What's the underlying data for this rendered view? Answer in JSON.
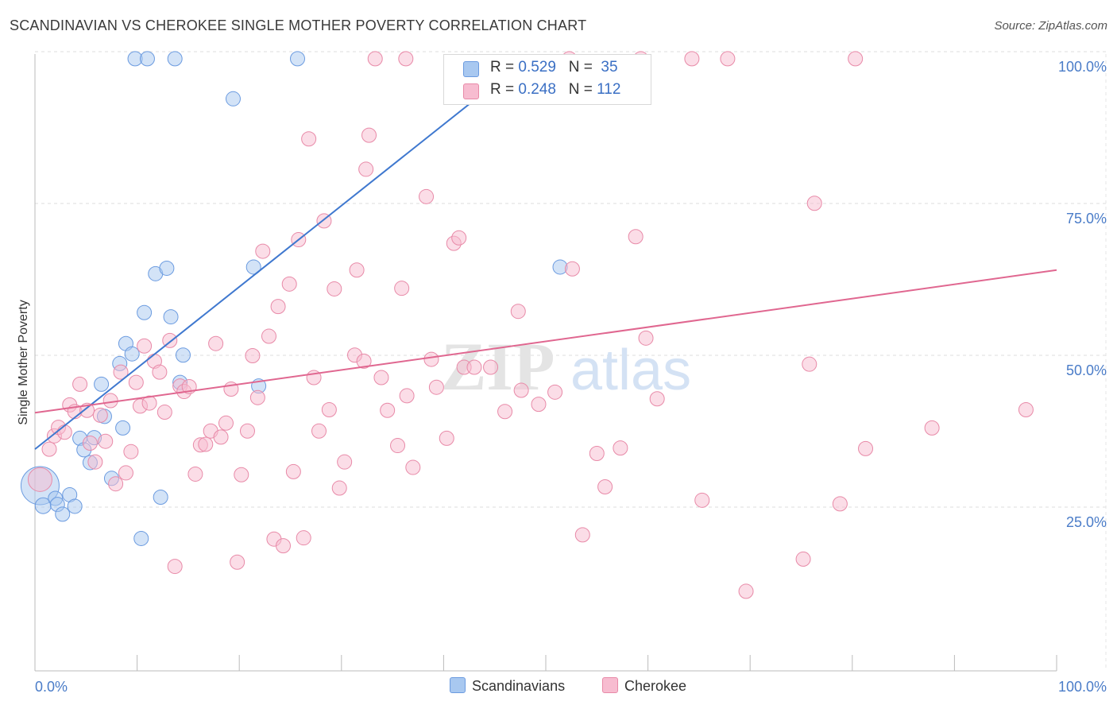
{
  "title": "SCANDINAVIAN VS CHEROKEE SINGLE MOTHER POVERTY CORRELATION CHART",
  "source": "Source: ZipAtlas.com",
  "watermark": {
    "zip": "ZIP",
    "atlas": "atlas"
  },
  "stats": [
    {
      "r_label": "R = ",
      "r_value": "0.529",
      "n_label": "N = ",
      "n_value": "35",
      "color": "#a8c8f0",
      "border": "#6b9be0"
    },
    {
      "r_label": "R = ",
      "r_value": "0.248",
      "n_label": "N = ",
      "n_value": "112",
      "color": "#f7bcd0",
      "border": "#e88aa8"
    }
  ],
  "legend": [
    {
      "label": "Scandinavians",
      "color": "#a8c8f0",
      "border": "#6b9be0"
    },
    {
      "label": "Cherokee",
      "color": "#f7bcd0",
      "border": "#e88aa8"
    }
  ],
  "chart_data": {
    "type": "scatter",
    "title": "SCANDINAVIAN VS CHEROKEE SINGLE MOTHER POVERTY CORRELATION CHART",
    "xlabel": "",
    "ylabel": "Single Mother Poverty",
    "xlim": [
      0,
      100
    ],
    "ylim": [
      0,
      102
    ],
    "x_tick_labels": [
      {
        "value": 0,
        "label": "0.0%"
      },
      {
        "value": 100,
        "label": "100.0%"
      }
    ],
    "y_tick_labels": [
      {
        "value": 25,
        "label": "25.0%"
      },
      {
        "value": 50,
        "label": "50.0%"
      },
      {
        "value": 75,
        "label": "75.0%"
      },
      {
        "value": 100,
        "label": "100.0%"
      }
    ],
    "grid": true,
    "series": [
      {
        "name": "Scandinavians",
        "color": "#a8c8f0",
        "stroke": "#6b9be0",
        "trend": {
          "x0": 0,
          "y0": 36.5,
          "x1": 47.5,
          "y1": 100,
          "color": "#3f78cf"
        },
        "points": [
          [
            0.5,
            30.5,
            24
          ],
          [
            0.8,
            27.2,
            10
          ],
          [
            2.0,
            28.4,
            9
          ],
          [
            2.2,
            27.4,
            9
          ],
          [
            2.7,
            25.8,
            9
          ],
          [
            3.4,
            29.0,
            9
          ],
          [
            3.9,
            27.1,
            9
          ],
          [
            4.4,
            38.3,
            9
          ],
          [
            4.8,
            36.4,
            9
          ],
          [
            5.4,
            34.3,
            9
          ],
          [
            5.8,
            38.4,
            9
          ],
          [
            6.5,
            47.2,
            9
          ],
          [
            6.8,
            41.9,
            9
          ],
          [
            7.5,
            31.7,
            9
          ],
          [
            8.3,
            50.6,
            9
          ],
          [
            8.6,
            40.0,
            9
          ],
          [
            8.9,
            53.9,
            9
          ],
          [
            9.5,
            52.2,
            9
          ],
          [
            9.8,
            100.8,
            9
          ],
          [
            10.4,
            21.8,
            9
          ],
          [
            10.7,
            59.0,
            9
          ],
          [
            11.0,
            100.8,
            9
          ],
          [
            11.8,
            65.4,
            9
          ],
          [
            12.3,
            28.6,
            9
          ],
          [
            12.9,
            66.3,
            9
          ],
          [
            13.3,
            58.3,
            9
          ],
          [
            13.7,
            100.8,
            9
          ],
          [
            14.2,
            47.5,
            9
          ],
          [
            14.5,
            52.0,
            9
          ],
          [
            19.4,
            94.2,
            9
          ],
          [
            21.4,
            66.5,
            9
          ],
          [
            21.9,
            46.9,
            9
          ],
          [
            25.7,
            100.8,
            9
          ],
          [
            51.4,
            66.5,
            9
          ]
        ]
      },
      {
        "name": "Cherokee",
        "color": "#f7bcd0",
        "stroke": "#e88aa8",
        "trend": {
          "x0": 0,
          "y0": 42.5,
          "x1": 100,
          "y1": 66.0,
          "color": "#e06790"
        },
        "points": [
          [
            0.5,
            31.5,
            15
          ],
          [
            1.4,
            36.5,
            9
          ],
          [
            1.9,
            38.7,
            9
          ],
          [
            2.3,
            40.1,
            9
          ],
          [
            2.9,
            39.3,
            9
          ],
          [
            3.4,
            43.8,
            9
          ],
          [
            3.9,
            42.7,
            9
          ],
          [
            4.4,
            47.2,
            9
          ],
          [
            5.1,
            42.9,
            9
          ],
          [
            5.4,
            37.5,
            9
          ],
          [
            5.9,
            34.4,
            9
          ],
          [
            6.4,
            42.1,
            9
          ],
          [
            6.9,
            37.8,
            9
          ],
          [
            7.4,
            44.5,
            9
          ],
          [
            7.9,
            30.8,
            9
          ],
          [
            8.4,
            49.2,
            9
          ],
          [
            8.9,
            32.6,
            9
          ],
          [
            9.4,
            36.1,
            9
          ],
          [
            9.9,
            47.5,
            9
          ],
          [
            10.3,
            43.6,
            9
          ],
          [
            10.7,
            53.5,
            9
          ],
          [
            11.2,
            44.1,
            9
          ],
          [
            11.7,
            51.0,
            9
          ],
          [
            12.2,
            49.2,
            9
          ],
          [
            12.7,
            42.6,
            9
          ],
          [
            13.2,
            54.4,
            9
          ],
          [
            13.7,
            17.2,
            9
          ],
          [
            14.2,
            46.9,
            9
          ],
          [
            14.6,
            46.0,
            9
          ],
          [
            15.1,
            46.8,
            9
          ],
          [
            15.7,
            32.4,
            9
          ],
          [
            16.2,
            37.2,
            9
          ],
          [
            16.7,
            37.3,
            9
          ],
          [
            17.2,
            39.5,
            9
          ],
          [
            17.7,
            53.9,
            9
          ],
          [
            18.2,
            38.5,
            9
          ],
          [
            18.7,
            40.8,
            9
          ],
          [
            19.2,
            46.4,
            9
          ],
          [
            19.8,
            17.9,
            9
          ],
          [
            20.2,
            32.3,
            9
          ],
          [
            20.8,
            39.5,
            9
          ],
          [
            21.3,
            51.9,
            9
          ],
          [
            21.8,
            45.0,
            9
          ],
          [
            22.3,
            69.1,
            9
          ],
          [
            22.9,
            55.1,
            9
          ],
          [
            23.4,
            21.7,
            9
          ],
          [
            23.8,
            60.0,
            9
          ],
          [
            24.3,
            20.6,
            9
          ],
          [
            24.9,
            63.7,
            9
          ],
          [
            25.3,
            32.8,
            9
          ],
          [
            25.8,
            71.0,
            9
          ],
          [
            26.3,
            21.9,
            9
          ],
          [
            26.8,
            87.6,
            9
          ],
          [
            27.3,
            48.3,
            9
          ],
          [
            27.8,
            39.5,
            9
          ],
          [
            28.3,
            74.1,
            9
          ],
          [
            28.8,
            43.0,
            9
          ],
          [
            29.3,
            62.9,
            9
          ],
          [
            29.8,
            30.1,
            9
          ],
          [
            30.3,
            34.4,
            9
          ],
          [
            31.3,
            52.0,
            9
          ],
          [
            31.5,
            66.0,
            9
          ],
          [
            32.2,
            51.0,
            9
          ],
          [
            32.4,
            82.6,
            9
          ],
          [
            32.7,
            88.2,
            9
          ],
          [
            33.3,
            100.8,
            9
          ],
          [
            33.9,
            48.3,
            9
          ],
          [
            34.5,
            42.9,
            9
          ],
          [
            35.5,
            37.1,
            9
          ],
          [
            35.9,
            63.0,
            9
          ],
          [
            36.3,
            100.8,
            9
          ],
          [
            36.4,
            45.3,
            9
          ],
          [
            37.0,
            33.5,
            9
          ],
          [
            38.3,
            78.1,
            9
          ],
          [
            38.8,
            51.3,
            9
          ],
          [
            39.3,
            46.7,
            9
          ],
          [
            40.3,
            38.3,
            9
          ],
          [
            41.0,
            70.4,
            9
          ],
          [
            41.5,
            71.3,
            9
          ],
          [
            42.0,
            50.0,
            9
          ],
          [
            43.0,
            50.0,
            9
          ],
          [
            44.6,
            50.0,
            9
          ],
          [
            46.0,
            42.7,
            9
          ],
          [
            47.3,
            59.2,
            9
          ],
          [
            47.6,
            46.2,
            9
          ],
          [
            49.3,
            43.9,
            9
          ],
          [
            50.9,
            45.9,
            9
          ],
          [
            52.3,
            100.8,
            9
          ],
          [
            52.6,
            66.2,
            9
          ],
          [
            53.6,
            22.4,
            9
          ],
          [
            55.0,
            35.8,
            9
          ],
          [
            55.8,
            30.3,
            9
          ],
          [
            57.3,
            36.7,
            9
          ],
          [
            58.8,
            71.5,
            9
          ],
          [
            59.3,
            100.8,
            9
          ],
          [
            59.8,
            54.8,
            9
          ],
          [
            60.9,
            44.8,
            9
          ],
          [
            64.3,
            100.8,
            9
          ],
          [
            65.3,
            28.1,
            9
          ],
          [
            67.8,
            100.8,
            9
          ],
          [
            69.6,
            13.1,
            9
          ],
          [
            75.2,
            18.4,
            9
          ],
          [
            75.8,
            50.5,
            9
          ],
          [
            76.3,
            77.0,
            9
          ],
          [
            78.8,
            27.5,
            9
          ],
          [
            80.3,
            100.8,
            9
          ],
          [
            81.3,
            36.6,
            9
          ],
          [
            87.8,
            40.0,
            9
          ],
          [
            97.0,
            43.0,
            9
          ]
        ]
      }
    ]
  }
}
